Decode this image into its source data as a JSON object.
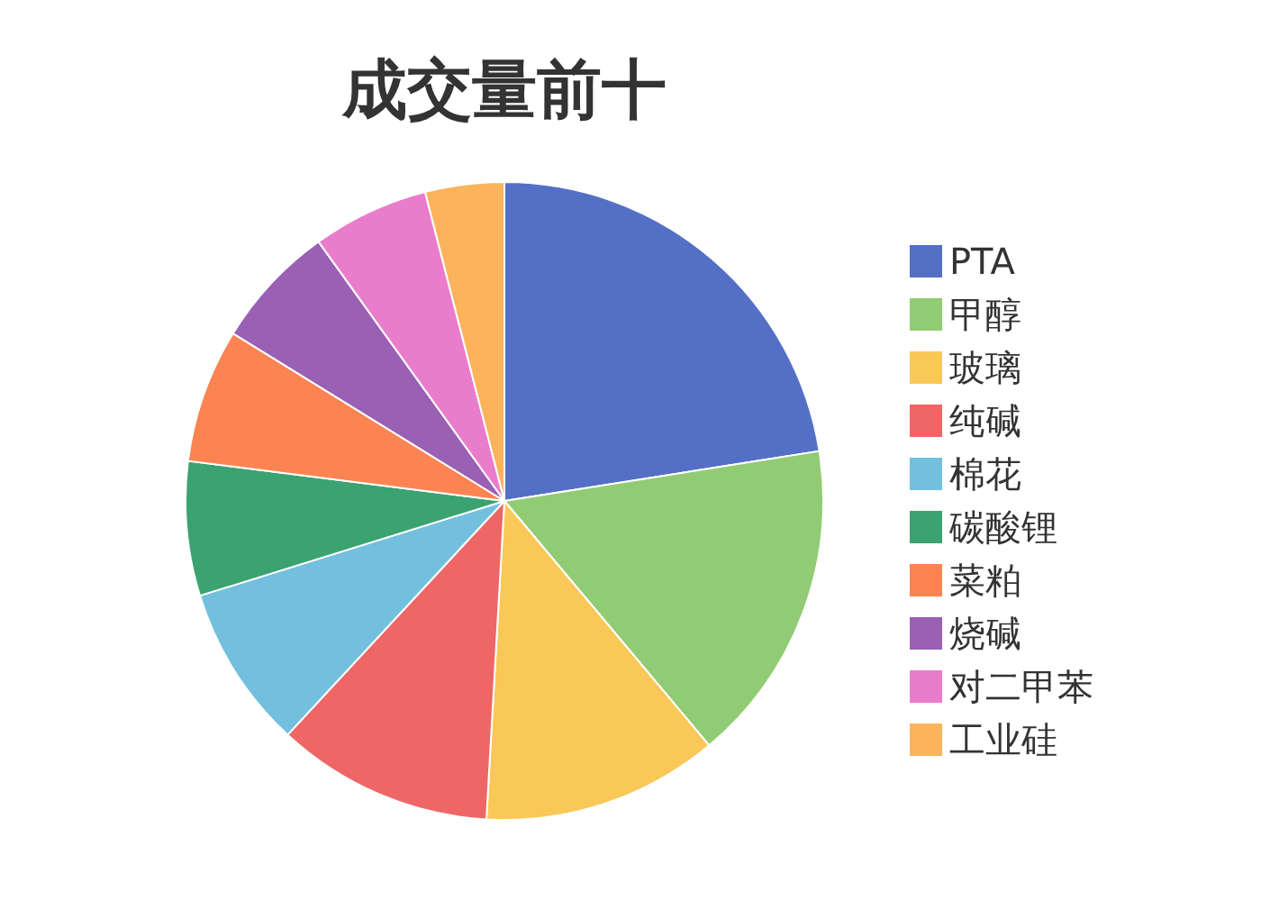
{
  "chart_data": {
    "type": "pie",
    "title": "成交量前十",
    "categories": [
      "PTA",
      "甲醇",
      "玻璃",
      "纯碱",
      "棉花",
      "碳酸锂",
      "菜粕",
      "烧碱",
      "对二甲苯",
      "工业硅"
    ],
    "values": [
      22.5,
      16.4,
      12.0,
      11.0,
      8.3,
      6.8,
      6.8,
      6.3,
      5.9,
      4.0
    ],
    "colors": [
      "#5470c6",
      "#91cc75",
      "#fac858",
      "#ee6666",
      "#73c0de",
      "#3ba272",
      "#fc8452",
      "#9a60b4",
      "#ea7ccc",
      "#fbb45c"
    ],
    "legend": "right"
  }
}
